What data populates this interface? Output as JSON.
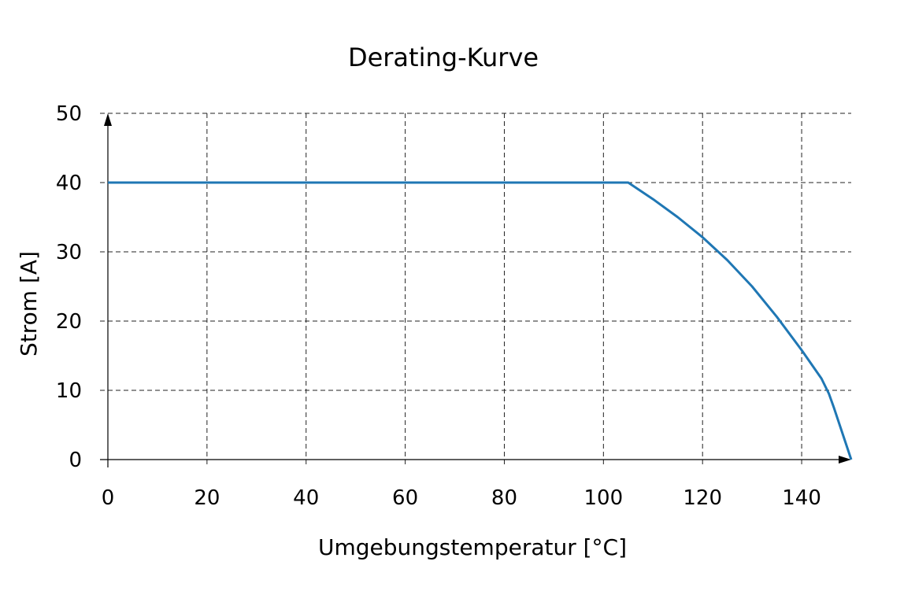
{
  "chart_data": {
    "type": "line",
    "title": "Derating-Kurve",
    "xlabel": "Umgebungstemperatur [°C]",
    "ylabel": "Strom [A]",
    "xlim": [
      0,
      150
    ],
    "ylim": [
      0,
      50
    ],
    "xticks": [
      "0",
      "20",
      "40",
      "60",
      "80",
      "100",
      "120",
      "140"
    ],
    "xtick_values": [
      0,
      20,
      40,
      60,
      80,
      100,
      120,
      140
    ],
    "yticks": [
      "0",
      "10",
      "20",
      "30",
      "40",
      "50"
    ],
    "ytick_values": [
      0,
      10,
      20,
      30,
      40,
      50
    ],
    "grid": true,
    "series": [
      {
        "color": "#1f77b4",
        "x": [
          0,
          105,
          110,
          115,
          120,
          125,
          130,
          135,
          140,
          144,
          145.5,
          146.5,
          150
        ],
        "y": [
          40,
          40,
          37.6,
          35.0,
          32.1,
          28.8,
          25.0,
          20.6,
          15.8,
          11.7,
          9.5,
          7.5,
          0
        ]
      }
    ]
  }
}
